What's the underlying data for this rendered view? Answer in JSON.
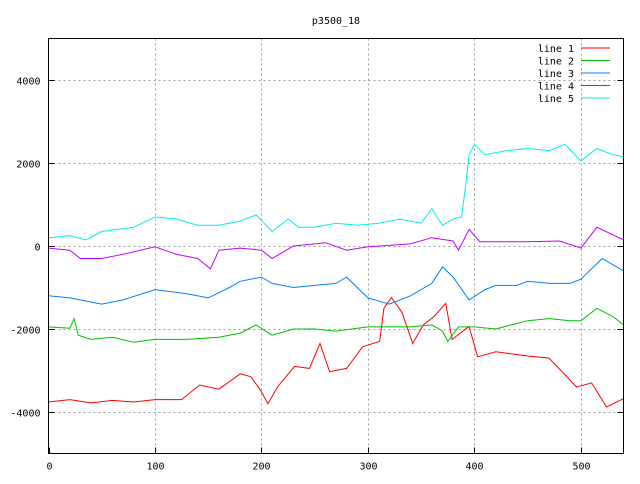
{
  "chart_data": {
    "type": "line",
    "title": "p3500_18",
    "xlabel": "",
    "ylabel": "",
    "xlim": [
      0,
      540
    ],
    "ylim": [
      -5000,
      5000
    ],
    "xticks": [
      0,
      100,
      200,
      300,
      400,
      500
    ],
    "yticks": [
      -4000,
      -2000,
      0,
      2000,
      4000
    ],
    "grid": true,
    "legend_position": "top-right",
    "series": [
      {
        "name": "line 1",
        "color": "#ff0000",
        "points": [
          [
            0,
            -3760
          ],
          [
            20,
            -3700
          ],
          [
            40,
            -3780
          ],
          [
            60,
            -3720
          ],
          [
            80,
            -3760
          ],
          [
            100,
            -3700
          ],
          [
            125,
            -3700
          ],
          [
            142,
            -3350
          ],
          [
            160,
            -3450
          ],
          [
            180,
            -3080
          ],
          [
            190,
            -3150
          ],
          [
            199,
            -3470
          ],
          [
            206,
            -3800
          ],
          [
            215,
            -3400
          ],
          [
            231,
            -2900
          ],
          [
            245,
            -2950
          ],
          [
            255,
            -2350
          ],
          [
            264,
            -3030
          ],
          [
            280,
            -2950
          ],
          [
            295,
            -2430
          ],
          [
            311,
            -2300
          ],
          [
            315,
            -1500
          ],
          [
            322,
            -1240
          ],
          [
            332,
            -1600
          ],
          [
            342,
            -2350
          ],
          [
            352,
            -1900
          ],
          [
            362,
            -1700
          ],
          [
            373,
            -1380
          ],
          [
            379,
            -2250
          ],
          [
            395,
            -1940
          ],
          [
            403,
            -2670
          ],
          [
            420,
            -2550
          ],
          [
            450,
            -2650
          ],
          [
            470,
            -2700
          ],
          [
            485,
            -3100
          ],
          [
            496,
            -3400
          ],
          [
            510,
            -3300
          ],
          [
            524,
            -3880
          ],
          [
            540,
            -3680
          ]
        ]
      },
      {
        "name": "line 2",
        "color": "#00c000",
        "points": [
          [
            0,
            -1950
          ],
          [
            20,
            -1980
          ],
          [
            24,
            -1750
          ],
          [
            28,
            -2150
          ],
          [
            40,
            -2250
          ],
          [
            60,
            -2200
          ],
          [
            80,
            -2320
          ],
          [
            100,
            -2250
          ],
          [
            130,
            -2250
          ],
          [
            160,
            -2200
          ],
          [
            180,
            -2100
          ],
          [
            195,
            -1900
          ],
          [
            210,
            -2150
          ],
          [
            230,
            -2000
          ],
          [
            250,
            -2000
          ],
          [
            270,
            -2050
          ],
          [
            300,
            -1950
          ],
          [
            340,
            -1950
          ],
          [
            360,
            -1900
          ],
          [
            370,
            -2050
          ],
          [
            375,
            -2300
          ],
          [
            385,
            -1950
          ],
          [
            400,
            -1950
          ],
          [
            420,
            -2000
          ],
          [
            450,
            -1800
          ],
          [
            470,
            -1750
          ],
          [
            490,
            -1800
          ],
          [
            500,
            -1800
          ],
          [
            515,
            -1500
          ],
          [
            530,
            -1700
          ],
          [
            540,
            -1900
          ]
        ]
      },
      {
        "name": "line 3",
        "color": "#0080ff",
        "points": [
          [
            0,
            -1200
          ],
          [
            20,
            -1250
          ],
          [
            50,
            -1400
          ],
          [
            70,
            -1300
          ],
          [
            100,
            -1050
          ],
          [
            130,
            -1150
          ],
          [
            150,
            -1250
          ],
          [
            170,
            -1000
          ],
          [
            180,
            -850
          ],
          [
            200,
            -750
          ],
          [
            210,
            -900
          ],
          [
            230,
            -1000
          ],
          [
            250,
            -950
          ],
          [
            270,
            -900
          ],
          [
            280,
            -750
          ],
          [
            300,
            -1250
          ],
          [
            320,
            -1400
          ],
          [
            340,
            -1200
          ],
          [
            360,
            -900
          ],
          [
            370,
            -500
          ],
          [
            380,
            -750
          ],
          [
            395,
            -1300
          ],
          [
            410,
            -1050
          ],
          [
            420,
            -950
          ],
          [
            440,
            -950
          ],
          [
            450,
            -850
          ],
          [
            470,
            -900
          ],
          [
            490,
            -900
          ],
          [
            500,
            -800
          ],
          [
            520,
            -300
          ],
          [
            540,
            -600
          ]
        ]
      },
      {
        "name": "line 4",
        "color": "#c000ff",
        "points": [
          [
            0,
            -50
          ],
          [
            20,
            -100
          ],
          [
            30,
            -300
          ],
          [
            50,
            -300
          ],
          [
            70,
            -200
          ],
          [
            100,
            -20
          ],
          [
            120,
            -200
          ],
          [
            140,
            -300
          ],
          [
            152,
            -550
          ],
          [
            160,
            -100
          ],
          [
            180,
            -50
          ],
          [
            200,
            -100
          ],
          [
            210,
            -300
          ],
          [
            230,
            0
          ],
          [
            260,
            80
          ],
          [
            280,
            -100
          ],
          [
            300,
            -20
          ],
          [
            340,
            50
          ],
          [
            360,
            200
          ],
          [
            380,
            120
          ],
          [
            385,
            -100
          ],
          [
            395,
            400
          ],
          [
            405,
            100
          ],
          [
            450,
            100
          ],
          [
            480,
            120
          ],
          [
            500,
            -50
          ],
          [
            515,
            450
          ],
          [
            540,
            150
          ]
        ]
      },
      {
        "name": "line 5",
        "color": "#00eeee",
        "points": [
          [
            0,
            200
          ],
          [
            20,
            250
          ],
          [
            35,
            150
          ],
          [
            50,
            350
          ],
          [
            80,
            450
          ],
          [
            100,
            700
          ],
          [
            120,
            650
          ],
          [
            140,
            500
          ],
          [
            160,
            500
          ],
          [
            180,
            600
          ],
          [
            195,
            750
          ],
          [
            210,
            350
          ],
          [
            225,
            650
          ],
          [
            235,
            450
          ],
          [
            250,
            450
          ],
          [
            270,
            550
          ],
          [
            290,
            500
          ],
          [
            310,
            550
          ],
          [
            330,
            650
          ],
          [
            350,
            550
          ],
          [
            360,
            900
          ],
          [
            370,
            500
          ],
          [
            380,
            650
          ],
          [
            388,
            700
          ],
          [
            392,
            1500
          ],
          [
            395,
            2200
          ],
          [
            400,
            2450
          ],
          [
            410,
            2200
          ],
          [
            430,
            2300
          ],
          [
            450,
            2350
          ],
          [
            470,
            2300
          ],
          [
            485,
            2450
          ],
          [
            500,
            2050
          ],
          [
            515,
            2350
          ],
          [
            530,
            2200
          ],
          [
            540,
            2150
          ]
        ]
      }
    ]
  }
}
